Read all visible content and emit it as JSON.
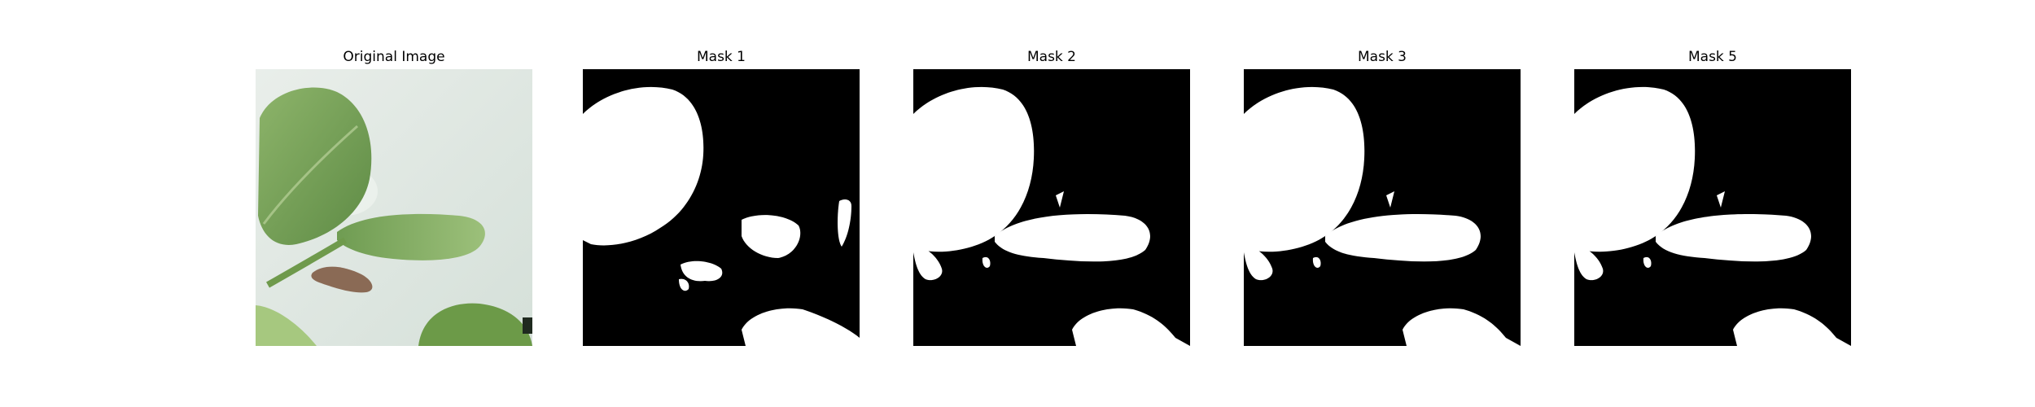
{
  "figure": {
    "panels": [
      {
        "title": "Original Image",
        "kind": "photo"
      },
      {
        "title": "Mask 1",
        "kind": "mask"
      },
      {
        "title": "Mask 2",
        "kind": "mask"
      },
      {
        "title": "Mask 3",
        "kind": "mask"
      },
      {
        "title": "Mask 5",
        "kind": "mask"
      }
    ]
  },
  "colors": {
    "background": "#ffffff",
    "mask_background": "#000000",
    "mask_foreground": "#ffffff",
    "photo_backdrop": "#dfe7e2",
    "leaf_green": "#7fa45c",
    "leaf_dark": "#5f8a44",
    "insect_brown": "#8a6a55"
  }
}
